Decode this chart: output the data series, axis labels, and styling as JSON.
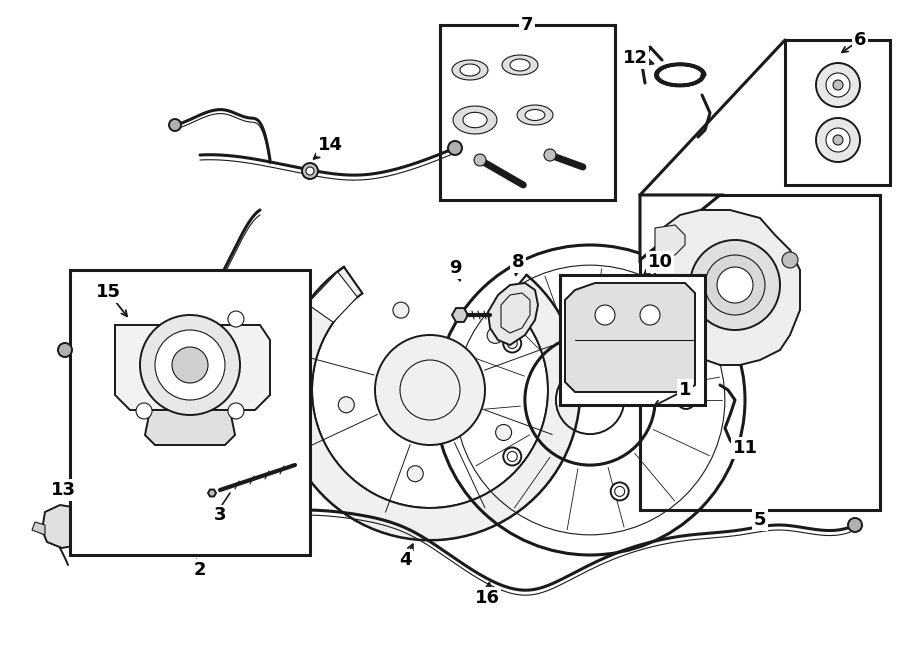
{
  "bg_color": "#ffffff",
  "line_color": "#1a1a1a",
  "label_color": "#000000",
  "figsize": [
    9.0,
    6.62
  ],
  "dpi": 100,
  "lw": 1.4
}
